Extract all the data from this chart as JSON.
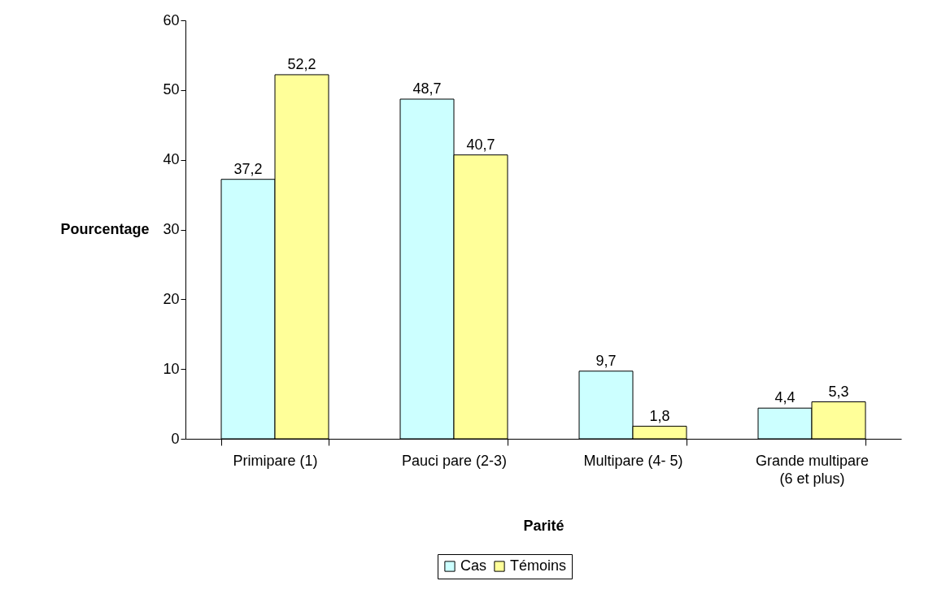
{
  "chart_data": {
    "type": "bar",
    "xlabel": "Parité",
    "ylabel": "Pourcentage",
    "categories": [
      "Primipare (1)",
      "Pauci pare (2-3)",
      "Multipare (4- 5)",
      "Grande multipare (6 et plus)"
    ],
    "series": [
      {
        "name": "Cas",
        "color": "#ccffff",
        "values": [
          37.2,
          48.7,
          9.7,
          4.4
        ],
        "value_labels": [
          "37,2",
          "48,7",
          "9,7",
          "4,4"
        ]
      },
      {
        "name": "Témoins",
        "color": "#ffff99",
        "values": [
          52.2,
          40.7,
          1.8,
          5.3
        ],
        "value_labels": [
          "52,2",
          "40,7",
          "1,8",
          "5,3"
        ]
      }
    ],
    "ylim": [
      0,
      60
    ],
    "yticks": [
      0,
      10,
      20,
      30,
      40,
      50,
      60
    ],
    "legend": "bottom"
  }
}
